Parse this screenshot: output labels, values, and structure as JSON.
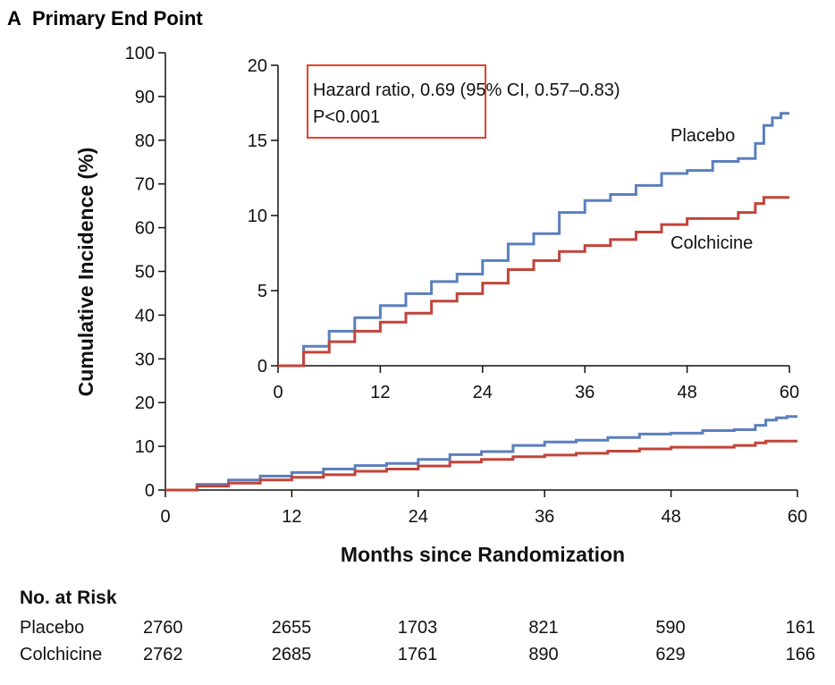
{
  "panel_letter": "A",
  "panel_title": "Primary End Point",
  "chart_data": {
    "type": "line",
    "step": true,
    "xlabel": "Months since Randomization",
    "ylabel": "Cumulative Incidence (%)",
    "xlim": [
      0,
      60
    ],
    "ylim": [
      0,
      100
    ],
    "xticks": [
      "0",
      "12",
      "24",
      "36",
      "48",
      "60"
    ],
    "yticks": [
      "0",
      "10",
      "20",
      "30",
      "40",
      "50",
      "60",
      "70",
      "80",
      "90",
      "100"
    ],
    "colors": {
      "Placebo": "#5b7fbe",
      "Colchicine": "#c2443a",
      "annotation_box": "#e8402a"
    },
    "series": [
      {
        "name": "Placebo",
        "x": [
          0,
          3,
          6,
          9,
          12,
          15,
          18,
          21,
          24,
          27,
          30,
          33,
          36,
          39,
          42,
          45,
          48,
          51,
          54,
          56,
          57,
          58,
          59,
          60
        ],
        "y": [
          0,
          1.3,
          2.3,
          3.2,
          4.0,
          4.8,
          5.6,
          6.1,
          7.0,
          8.1,
          8.8,
          10.2,
          11.0,
          11.4,
          12.0,
          12.8,
          13.0,
          13.6,
          13.8,
          14.8,
          16.0,
          16.5,
          16.8,
          16.8
        ]
      },
      {
        "name": "Colchicine",
        "x": [
          0,
          3,
          6,
          9,
          12,
          15,
          18,
          21,
          24,
          27,
          30,
          33,
          36,
          39,
          42,
          45,
          48,
          51,
          54,
          56,
          57,
          60
        ],
        "y": [
          0,
          0.9,
          1.6,
          2.3,
          2.9,
          3.5,
          4.3,
          4.8,
          5.5,
          6.4,
          7.0,
          7.6,
          8.0,
          8.4,
          8.9,
          9.4,
          9.8,
          9.8,
          10.2,
          10.8,
          11.2,
          11.2
        ]
      }
    ],
    "inset": {
      "xlim": [
        0,
        60
      ],
      "ylim": [
        0,
        20
      ],
      "xticks": [
        "0",
        "12",
        "24",
        "36",
        "48",
        "60"
      ],
      "yticks": [
        "0",
        "5",
        "10",
        "15",
        "20"
      ],
      "series_labels": [
        "Placebo",
        "Colchicine"
      ],
      "annotation": {
        "line1": "Hazard ratio, 0.69 (95% CI, 0.57–0.83)",
        "line2": "P<0.001"
      }
    }
  },
  "risk_table": {
    "title": "No. at Risk",
    "rows": [
      {
        "label": "Placebo",
        "values": [
          "2760",
          "2655",
          "1703",
          "821",
          "590",
          "161"
        ]
      },
      {
        "label": "Colchicine",
        "values": [
          "2762",
          "2685",
          "1761",
          "890",
          "629",
          "166"
        ]
      }
    ]
  }
}
